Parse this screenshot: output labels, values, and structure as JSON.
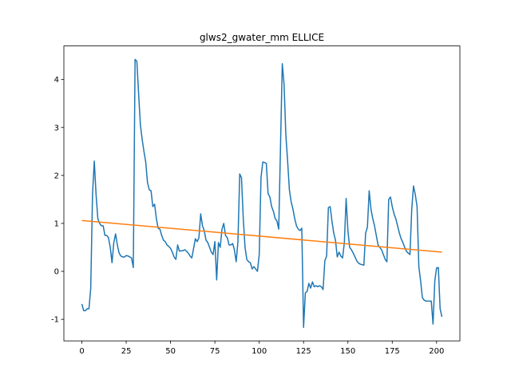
{
  "chart_data": {
    "type": "line",
    "title": "glws2_gwater_mm ELLICE",
    "xlim": [
      -10.15,
      213.15
    ],
    "xticks": [
      0,
      25,
      50,
      75,
      100,
      125,
      150,
      175,
      200
    ],
    "ylim": [
      -1.45,
      4.7
    ],
    "yticks": [
      -1,
      0,
      1,
      2,
      3,
      4
    ],
    "series": [
      {
        "color": "#1f77b4",
        "x": [
          0,
          1,
          2,
          3,
          4,
          5,
          6,
          7,
          8,
          9,
          10,
          11,
          12,
          13,
          14,
          15,
          16,
          17,
          18,
          19,
          20,
          21,
          22,
          23,
          24,
          25,
          26,
          27,
          28,
          29,
          30,
          31,
          32,
          33,
          34,
          35,
          36,
          37,
          38,
          39,
          40,
          41,
          42,
          43,
          44,
          45,
          46,
          47,
          48,
          49,
          50,
          51,
          52,
          53,
          54,
          55,
          56,
          57,
          58,
          59,
          60,
          61,
          62,
          63,
          64,
          65,
          66,
          67,
          68,
          69,
          70,
          71,
          72,
          73,
          74,
          75,
          76,
          77,
          78,
          79,
          80,
          81,
          82,
          83,
          84,
          85,
          86,
          87,
          88,
          89,
          90,
          91,
          92,
          93,
          94,
          95,
          96,
          97,
          98,
          99,
          100,
          101,
          102,
          103,
          104,
          105,
          106,
          107,
          108,
          109,
          110,
          111,
          112,
          113,
          114,
          115,
          116,
          117,
          118,
          119,
          120,
          121,
          122,
          123,
          124,
          125,
          126,
          127,
          128,
          129,
          130,
          131,
          132,
          133,
          134,
          135,
          136,
          137,
          138,
          139,
          140,
          141,
          142,
          143,
          144,
          145,
          146,
          147,
          148,
          149,
          150,
          151,
          152,
          153,
          154,
          155,
          156,
          157,
          158,
          159,
          160,
          161,
          162,
          163,
          164,
          165,
          166,
          167,
          168,
          169,
          170,
          171,
          172,
          173,
          174,
          175,
          176,
          177,
          178,
          179,
          180,
          181,
          182,
          183,
          184,
          185,
          186,
          187,
          188,
          189,
          190,
          191,
          192,
          193,
          194,
          195,
          196,
          197,
          198,
          199,
          200,
          201,
          202,
          203
        ],
        "values": [
          -0.68,
          -0.82,
          -0.82,
          -0.78,
          -0.78,
          -0.35,
          1.6,
          2.3,
          1.6,
          1.1,
          1.0,
          0.95,
          0.95,
          0.75,
          0.75,
          0.7,
          0.5,
          0.18,
          0.6,
          0.78,
          0.55,
          0.38,
          0.32,
          0.3,
          0.3,
          0.33,
          0.32,
          0.3,
          0.28,
          0.08,
          4.42,
          4.38,
          3.7,
          3.05,
          2.75,
          2.5,
          2.28,
          1.85,
          1.7,
          1.68,
          1.35,
          1.4,
          1.1,
          0.9,
          0.88,
          0.75,
          0.65,
          0.62,
          0.55,
          0.52,
          0.48,
          0.4,
          0.3,
          0.25,
          0.55,
          0.42,
          0.43,
          0.43,
          0.45,
          0.42,
          0.38,
          0.32,
          0.28,
          0.48,
          0.68,
          0.62,
          0.7,
          1.2,
          0.95,
          0.85,
          0.65,
          0.6,
          0.5,
          0.4,
          0.35,
          0.62,
          -0.18,
          0.6,
          0.5,
          0.88,
          1.0,
          0.75,
          0.7,
          0.55,
          0.55,
          0.58,
          0.45,
          0.2,
          0.62,
          2.03,
          1.95,
          1.1,
          0.5,
          0.25,
          0.2,
          0.18,
          0.05,
          0.1,
          0.05,
          0.0,
          0.35,
          1.95,
          2.28,
          2.27,
          2.25,
          1.62,
          1.55,
          1.35,
          1.25,
          1.1,
          1.05,
          0.88,
          2.6,
          4.33,
          3.9,
          2.85,
          2.3,
          1.7,
          1.45,
          1.3,
          1.1,
          0.95,
          0.88,
          0.85,
          0.9,
          -1.17,
          -0.45,
          -0.42,
          -0.25,
          -0.35,
          -0.22,
          -0.32,
          -0.3,
          -0.32,
          -0.3,
          -0.32,
          -0.38,
          0.22,
          0.32,
          1.33,
          1.35,
          1.05,
          0.8,
          0.65,
          0.3,
          0.4,
          0.32,
          0.28,
          0.6,
          1.52,
          0.85,
          0.5,
          0.45,
          0.38,
          0.3,
          0.22,
          0.17,
          0.15,
          0.14,
          0.13,
          0.8,
          0.92,
          1.68,
          1.3,
          1.1,
          0.95,
          0.75,
          0.55,
          0.5,
          0.45,
          0.35,
          0.25,
          0.2,
          1.5,
          1.55,
          1.35,
          1.2,
          1.1,
          0.95,
          0.8,
          0.68,
          0.6,
          0.5,
          0.42,
          0.38,
          0.35,
          1.3,
          1.78,
          1.6,
          1.35,
          0.1,
          -0.2,
          -0.55,
          -0.6,
          -0.62,
          -0.62,
          -0.62,
          -0.62,
          -1.1,
          -0.2,
          0.07,
          0.08,
          -0.78,
          -0.95
        ]
      },
      {
        "color": "#ff7f0e",
        "x": [
          0,
          203
        ],
        "values": [
          1.06,
          0.4
        ]
      }
    ]
  }
}
